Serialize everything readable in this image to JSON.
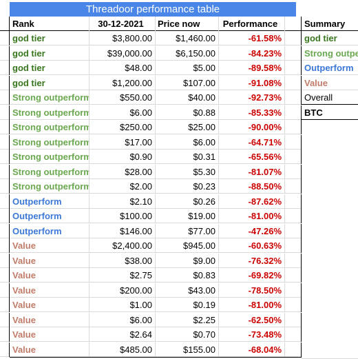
{
  "table": {
    "title": "Threadoor performance table",
    "headers": {
      "rank": "Rank",
      "date": "30-12-2021",
      "now": "Price now",
      "perf": "Performance"
    },
    "colors": {
      "god": "#38761d",
      "strong": "#6aa84f",
      "out": "#3c78d8",
      "value": "#c27c6a",
      "perf": "#cc0000",
      "header_bg": "#4a86e8"
    },
    "rows": [
      {
        "rank": "god tier",
        "date": "$3,800.00",
        "now": "$1,460.00",
        "perf": "-61.58%",
        "tier": "god"
      },
      {
        "rank": "god tier",
        "date": "$39,000.00",
        "now": "$6,150.00",
        "perf": "-84.23%",
        "tier": "god"
      },
      {
        "rank": "god tier",
        "date": "$48.00",
        "now": "$5.00",
        "perf": "-89.58%",
        "tier": "god"
      },
      {
        "rank": "god tier",
        "date": "$1,200.00",
        "now": "$107.00",
        "perf": "-91.08%",
        "tier": "god"
      },
      {
        "rank": "Strong outperform",
        "date": "$550.00",
        "now": "$40.00",
        "perf": "-92.73%",
        "tier": "strong"
      },
      {
        "rank": "Strong outperform",
        "date": "$6.00",
        "now": "$0.88",
        "perf": "-85.33%",
        "tier": "strong"
      },
      {
        "rank": "Strong outperform",
        "date": "$250.00",
        "now": "$25.00",
        "perf": "-90.00%",
        "tier": "strong"
      },
      {
        "rank": "Strong outperform",
        "date": "$17.00",
        "now": "$6.00",
        "perf": "-64.71%",
        "tier": "strong"
      },
      {
        "rank": "Strong outperform",
        "date": "$0.90",
        "now": "$0.31",
        "perf": "-65.56%",
        "tier": "strong"
      },
      {
        "rank": "Strong outperform",
        "date": "$28.00",
        "now": "$5.30",
        "perf": "-81.07%",
        "tier": "strong"
      },
      {
        "rank": "Strong outperform",
        "date": "$2.00",
        "now": "$0.23",
        "perf": "-88.50%",
        "tier": "strong"
      },
      {
        "rank": "Outperform",
        "date": "$2.10",
        "now": "$0.26",
        "perf": "-87.62%",
        "tier": "out"
      },
      {
        "rank": "Outperform",
        "date": "$100.00",
        "now": "$19.00",
        "perf": "-81.00%",
        "tier": "out"
      },
      {
        "rank": "Outperform",
        "date": "$146.00",
        "now": "$77.00",
        "perf": "-47.26%",
        "tier": "out"
      },
      {
        "rank": "Value",
        "date": "$2,400.00",
        "now": "$945.00",
        "perf": "-60.63%",
        "tier": "value"
      },
      {
        "rank": "Value",
        "date": "$38.00",
        "now": "$9.00",
        "perf": "-76.32%",
        "tier": "value"
      },
      {
        "rank": "Value",
        "date": "$2.75",
        "now": "$0.83",
        "perf": "-69.82%",
        "tier": "value"
      },
      {
        "rank": "Value",
        "date": "$200.00",
        "now": "$43.00",
        "perf": "-78.50%",
        "tier": "value"
      },
      {
        "rank": "Value",
        "date": "$1.00",
        "now": "$0.19",
        "perf": "-81.00%",
        "tier": "value"
      },
      {
        "rank": "Value",
        "date": "$6.00",
        "now": "$2.25",
        "perf": "-62.50%",
        "tier": "value"
      },
      {
        "rank": "Value",
        "date": "$2.64",
        "now": "$0.70",
        "perf": "-73.48%",
        "tier": "value"
      },
      {
        "rank": "Value",
        "date": "$485.00",
        "now": "$155.00",
        "perf": "-68.04%",
        "tier": "value"
      }
    ]
  },
  "summary": {
    "header": "Summary",
    "items": [
      {
        "label": "god tier",
        "tier": "god"
      },
      {
        "label": "Strong outperform",
        "tier": "strong"
      },
      {
        "label": "Outperform",
        "tier": "out"
      },
      {
        "label": "Value",
        "tier": "value"
      },
      {
        "label": "Overall",
        "tier": "overall"
      },
      {
        "label": "BTC",
        "tier": "btc"
      }
    ]
  }
}
